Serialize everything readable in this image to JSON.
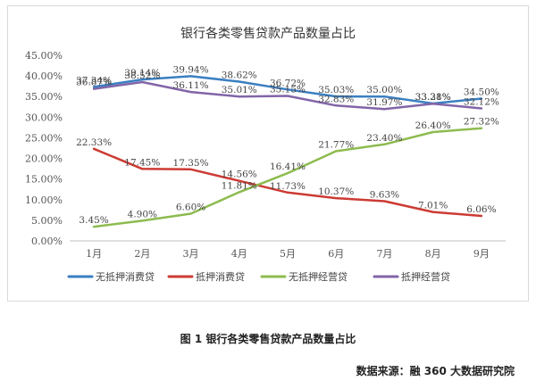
{
  "chart_data": {
    "type": "line",
    "title": "银行各类零售贷款产品数量占比",
    "categories": [
      "1月",
      "2月",
      "3月",
      "4月",
      "5月",
      "6月",
      "7月",
      "8月",
      "9月"
    ],
    "ylim": [
      0,
      45
    ],
    "yticks": [
      "0.00%",
      "5.00%",
      "10.00%",
      "15.00%",
      "20.00%",
      "25.00%",
      "30.00%",
      "35.00%",
      "40.00%",
      "45.00%"
    ],
    "grid": false,
    "legend_position": "bottom",
    "series": [
      {
        "name": "无抵押消费贷",
        "color": "#3a7fc1",
        "values": [
          37.34,
          39.14,
          39.94,
          38.62,
          36.72,
          35.03,
          35.0,
          33.31,
          34.5
        ],
        "labels": [
          "37.34%",
          "39.14%",
          "39.94%",
          "38.62%",
          "36.72%",
          "35.03%",
          "35.00%",
          "33.31%",
          "34.50%"
        ]
      },
      {
        "name": "抵押消费贷",
        "color": "#cc3b33",
        "values": [
          22.33,
          17.45,
          17.35,
          14.56,
          11.73,
          10.37,
          9.63,
          7.01,
          6.06
        ],
        "labels": [
          "22.33%",
          "17.45%",
          "17.35%",
          "14.56%",
          "11.73%",
          "10.37%",
          "9.63%",
          "7.01%",
          "6.06%"
        ]
      },
      {
        "name": "无抵押经营贷",
        "color": "#8dbb4f",
        "values": [
          3.45,
          4.9,
          6.6,
          11.81,
          16.41,
          21.77,
          23.4,
          26.4,
          27.32
        ],
        "labels": [
          "3.45%",
          "4.90%",
          "6.60%",
          "11.81%",
          "16.41%",
          "21.77%",
          "23.40%",
          "26.40%",
          "27.32%"
        ]
      },
      {
        "name": "抵押经营贷",
        "color": "#8265a8",
        "values": [
          36.87,
          38.52,
          36.11,
          35.01,
          35.15,
          32.83,
          31.97,
          33.28,
          32.12
        ],
        "labels": [
          "36.87%",
          "38.52%",
          "36.11%",
          "35.01%",
          "35.15%",
          "32.83%",
          "31.97%",
          "33.28%",
          "32.12%"
        ]
      }
    ]
  },
  "caption": "图 1 银行各类零售贷款产品数量占比",
  "source": "数据来源：融 360 大数据研究院"
}
